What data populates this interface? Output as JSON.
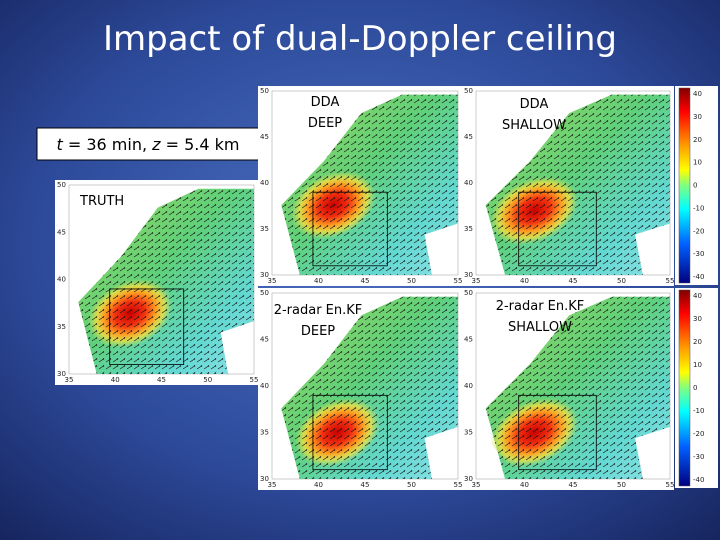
{
  "title": "Impact of dual-Doppler ceiling",
  "time_label": {
    "parts": [
      "t",
      " = 36 min, ",
      "z",
      " = 5.4 km"
    ]
  },
  "panels": [
    {
      "label": [
        "TRUTH"
      ],
      "yticks": [
        50,
        45,
        40,
        35,
        30
      ],
      "xticks": [
        35,
        40,
        45,
        50,
        55
      ]
    },
    {
      "label": [
        "DDA",
        "DEEP"
      ],
      "yticks": [
        50,
        45,
        40,
        35,
        30
      ],
      "xticks": [
        35,
        40,
        45,
        50,
        55
      ]
    },
    {
      "label": [
        "DDA",
        "SHALLOW"
      ],
      "yticks": [
        50,
        45,
        40,
        35,
        30
      ],
      "xticks": [
        35,
        40,
        45,
        50,
        55
      ]
    },
    {
      "label": [
        "2-radar En.KF",
        "DEEP"
      ],
      "yticks": [
        50,
        45,
        40,
        35,
        30
      ],
      "xticks": [
        35,
        40,
        45,
        50,
        55
      ]
    },
    {
      "label": [
        "2-radar En.KF",
        "SHALLOW"
      ],
      "yticks": [
        50,
        45,
        40,
        35,
        30
      ],
      "xticks": [
        35,
        40,
        45,
        50,
        55
      ]
    }
  ],
  "colorbars": [
    {
      "ticks": [
        40,
        30,
        20,
        10,
        0,
        -10,
        -20,
        -30,
        -40
      ]
    },
    {
      "ticks": [
        40,
        30,
        20,
        10,
        0,
        -10,
        -20,
        -30,
        -40
      ]
    }
  ]
}
